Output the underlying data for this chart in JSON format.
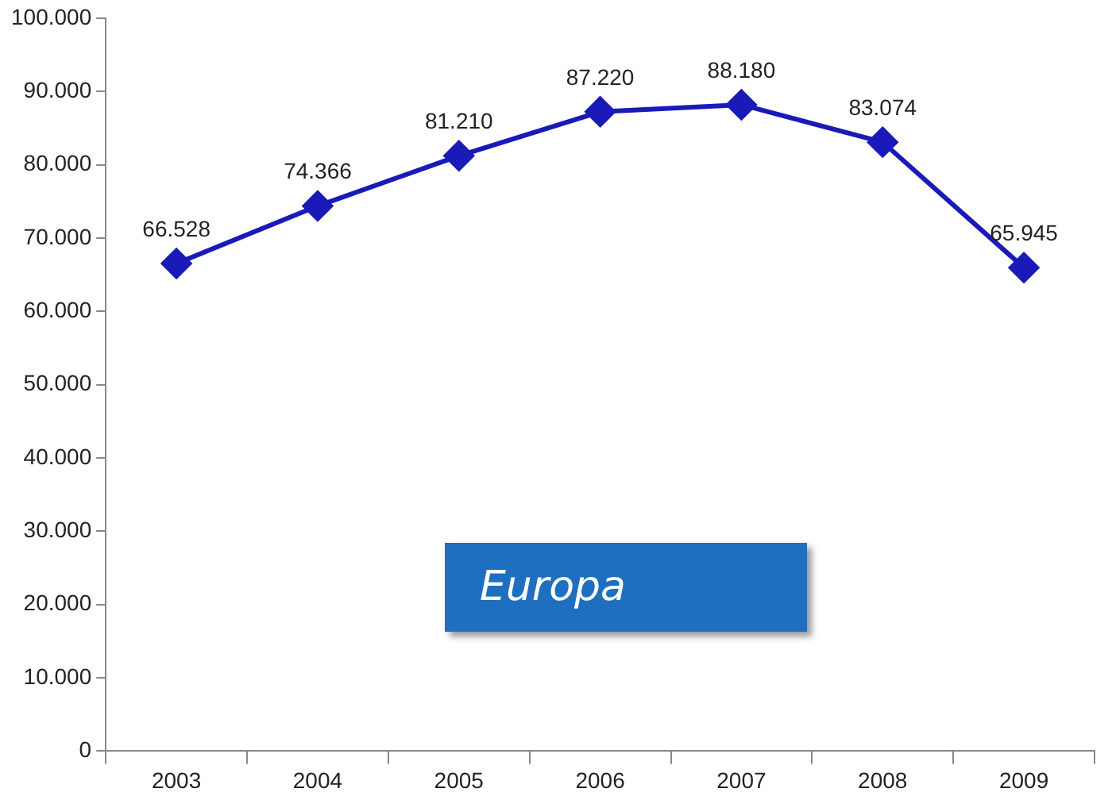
{
  "chart_data": {
    "type": "line",
    "categories": [
      "2003",
      "2004",
      "2005",
      "2006",
      "2007",
      "2008",
      "2009"
    ],
    "series": [
      {
        "color": "#1a1ab8",
        "values": [
          66528,
          74366,
          81210,
          87220,
          88180,
          83074,
          65945
        ],
        "value_labels": [
          "66.528",
          "74.366",
          "81.210",
          "87.220",
          "88.180",
          "83.074",
          "65.945"
        ]
      }
    ],
    "ylim": [
      0,
      100000
    ],
    "yticks": [
      {
        "value": 0,
        "label": "0"
      },
      {
        "value": 10000,
        "label": "10.000"
      },
      {
        "value": 20000,
        "label": "20.000"
      },
      {
        "value": 30000,
        "label": "30.000"
      },
      {
        "value": 40000,
        "label": "40.000"
      },
      {
        "value": 50000,
        "label": "50.000"
      },
      {
        "value": 60000,
        "label": "60.000"
      },
      {
        "value": 70000,
        "label": "70.000"
      },
      {
        "value": 80000,
        "label": "80.000"
      },
      {
        "value": 90000,
        "label": "90.000"
      },
      {
        "value": 100000,
        "label": "100.000"
      }
    ],
    "annotations": [
      "Europa"
    ],
    "marker": "diamond",
    "line_style": "solid",
    "grid": false,
    "legend": false
  }
}
